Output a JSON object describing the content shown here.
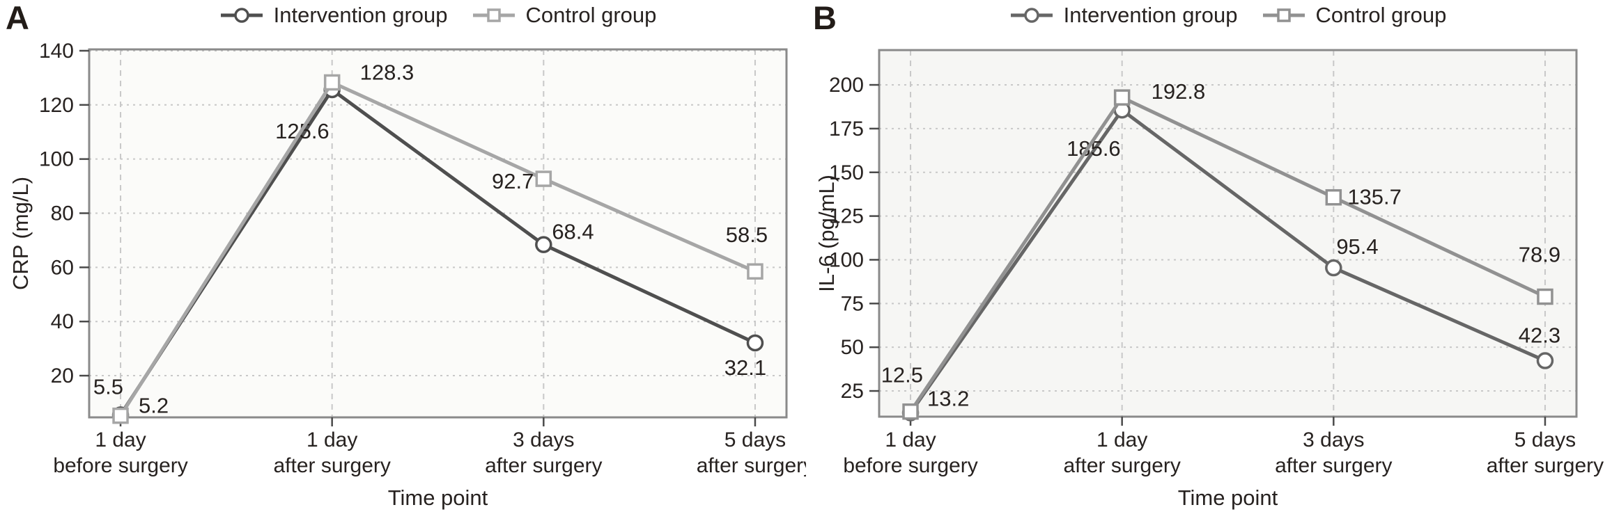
{
  "figure": {
    "background": "#ffffff",
    "text_color": "#2a2320"
  },
  "panels": [
    {
      "letter": "A",
      "legend": [
        {
          "label": "Intervention group",
          "marker": "circle"
        },
        {
          "label": "Control group",
          "marker": "square"
        }
      ],
      "chart_data": {
        "type": "line",
        "categories": [
          [
            "1 day",
            "before surgery"
          ],
          [
            "1 day",
            "after surgery"
          ],
          [
            "3 days",
            "after surgery"
          ],
          [
            "5 days",
            "after surgery"
          ]
        ],
        "xlabel": "Time point",
        "ylabel": "CRP (mg/L)",
        "yticks": [
          20,
          40,
          60,
          80,
          100,
          120,
          140
        ],
        "ylim": [
          4.6,
          140.5
        ],
        "grid": true,
        "legend_position": "top-center",
        "series": [
          {
            "name": "Intervention group",
            "marker": "circle",
            "color": "#4f4f4f",
            "values": [
              5.5,
              125.6,
              68.4,
              32.1
            ]
          },
          {
            "name": "Control group",
            "marker": "square",
            "color": "#a6a6a6",
            "values": [
              5.2,
              128.3,
              92.7,
              58.5
            ]
          }
        ]
      }
    },
    {
      "letter": "B",
      "legend": [
        {
          "label": "Intervention group",
          "marker": "circle"
        },
        {
          "label": "Control group",
          "marker": "square"
        }
      ],
      "chart_data": {
        "type": "line",
        "categories": [
          [
            "1 day",
            "before surgery"
          ],
          [
            "1 day",
            "after surgery"
          ],
          [
            "3 days",
            "after surgery"
          ],
          [
            "5 days",
            "after surgery"
          ]
        ],
        "xlabel": "Time point",
        "ylabel": "IL-6 (pg/mL)",
        "yticks": [
          25,
          50,
          75,
          100,
          125,
          150,
          175,
          200
        ],
        "ylim": [
          10.3,
          219.9
        ],
        "grid": true,
        "legend_position": "top-center",
        "series": [
          {
            "name": "Intervention group",
            "marker": "circle",
            "color": "#666666",
            "values": [
              12.5,
              185.6,
              95.4,
              42.3
            ]
          },
          {
            "name": "Control group",
            "marker": "square",
            "color": "#919191",
            "values": [
              13.2,
              192.8,
              135.7,
              78.9
            ]
          }
        ]
      }
    }
  ]
}
